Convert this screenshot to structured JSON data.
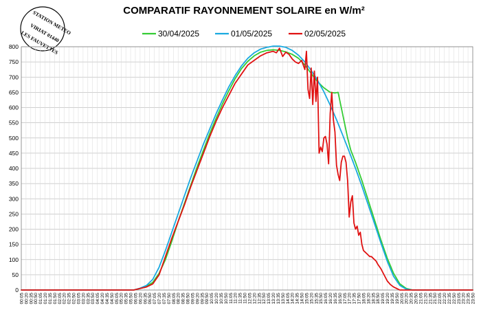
{
  "stamp": {
    "line1": "STATION METEO",
    "line2": "VIRIAT 01440",
    "line3": "LES FAUVETTES"
  },
  "chart_data": {
    "type": "line",
    "title": "COMPARATIF RAYONNEMENT SOLAIRE en W/m²",
    "xlabel": "",
    "ylabel": "",
    "ylim": [
      0,
      800
    ],
    "yticks": [
      0,
      50,
      100,
      150,
      200,
      250,
      300,
      350,
      400,
      450,
      500,
      550,
      600,
      650,
      700,
      750,
      800
    ],
    "grid": true,
    "legend_position": "top-center",
    "x_tick_labels": [
      "00:05",
      "00:20",
      "00:35",
      "00:50",
      "01:05",
      "01:20",
      "01:35",
      "01:50",
      "02:05",
      "02:20",
      "02:35",
      "02:50",
      "03:05",
      "03:20",
      "03:35",
      "03:50",
      "04:05",
      "04:20",
      "04:35",
      "04:50",
      "05:05",
      "05:20",
      "05:35",
      "05:50",
      "06:05",
      "06:20",
      "06:35",
      "06:50",
      "07:05",
      "07:20",
      "07:35",
      "07:50",
      "08:05",
      "08:20",
      "08:35",
      "08:50",
      "09:05",
      "09:20",
      "09:35",
      "09:50",
      "10:05",
      "10:20",
      "10:35",
      "10:50",
      "11:05",
      "11:20",
      "11:35",
      "11:50",
      "12:05",
      "12:20",
      "12:35",
      "12:50",
      "13:05",
      "13:20",
      "13:35",
      "13:50",
      "14:05",
      "14:20",
      "14:35",
      "14:50",
      "15:05",
      "15:20",
      "15:35",
      "15:50",
      "16:05",
      "16:20",
      "16:35",
      "16:50",
      "17:05",
      "17:20",
      "17:35",
      "17:50",
      "18:05",
      "18:20",
      "18:35",
      "18:50",
      "19:05",
      "19:20",
      "19:35",
      "19:50",
      "20:05",
      "20:20",
      "20:35",
      "20:50",
      "21:05",
      "21:20",
      "21:35",
      "21:50",
      "22:05",
      "22:20",
      "22:35",
      "22:50",
      "23:05",
      "23:20",
      "23:35",
      "23:50"
    ],
    "series": [
      {
        "name": "30/04/2025",
        "color": "#33cc33",
        "x": [
          "00:05",
          "06:00",
          "06:20",
          "06:40",
          "07:00",
          "07:20",
          "07:40",
          "08:00",
          "08:20",
          "08:40",
          "09:00",
          "09:20",
          "09:40",
          "10:00",
          "10:20",
          "10:40",
          "11:00",
          "11:20",
          "11:40",
          "12:00",
          "12:20",
          "12:40",
          "13:00",
          "13:20",
          "13:40",
          "14:00",
          "14:20",
          "14:40",
          "15:00",
          "15:20",
          "15:40",
          "16:00",
          "16:20",
          "16:35",
          "16:45",
          "16:55",
          "17:05",
          "17:15",
          "17:25",
          "17:40",
          "18:00",
          "18:20",
          "18:40",
          "19:00",
          "19:20",
          "19:40",
          "20:00",
          "20:20",
          "20:40",
          "21:00",
          "21:20",
          "23:50"
        ],
        "values": [
          0,
          0,
          5,
          12,
          25,
          55,
          100,
          160,
          225,
          285,
          345,
          405,
          460,
          515,
          565,
          612,
          655,
          695,
          728,
          752,
          770,
          782,
          788,
          790,
          788,
          783,
          775,
          762,
          740,
          712,
          685,
          665,
          650,
          648,
          650,
          600,
          550,
          500,
          460,
          420,
          360,
          295,
          230,
          165,
          105,
          55,
          20,
          5,
          0,
          0,
          0,
          0
        ]
      },
      {
        "name": "01/05/2025",
        "color": "#19a9e0",
        "x": [
          "00:05",
          "06:00",
          "06:20",
          "06:40",
          "07:00",
          "07:20",
          "07:40",
          "08:00",
          "08:20",
          "08:40",
          "09:00",
          "09:20",
          "09:40",
          "10:00",
          "10:20",
          "10:40",
          "11:00",
          "11:20",
          "11:40",
          "12:00",
          "12:20",
          "12:40",
          "13:00",
          "13:20",
          "13:40",
          "14:00",
          "14:20",
          "14:40",
          "15:00",
          "15:20",
          "15:40",
          "16:00",
          "16:20",
          "16:40",
          "17:00",
          "17:20",
          "17:40",
          "18:00",
          "18:20",
          "18:40",
          "19:00",
          "19:20",
          "19:40",
          "20:00",
          "20:20",
          "20:40",
          "21:00",
          "21:20",
          "23:50"
        ],
        "values": [
          0,
          0,
          6,
          15,
          35,
          75,
          130,
          190,
          250,
          310,
          370,
          425,
          480,
          530,
          580,
          625,
          668,
          705,
          737,
          762,
          780,
          792,
          798,
          802,
          802,
          798,
          788,
          772,
          750,
          722,
          690,
          652,
          608,
          560,
          508,
          455,
          400,
          342,
          280,
          218,
          155,
          95,
          45,
          15,
          3,
          0,
          0,
          0,
          0
        ]
      },
      {
        "name": "02/05/2025",
        "color": "#e01010",
        "x": [
          "00:05",
          "06:00",
          "06:20",
          "06:40",
          "07:00",
          "07:20",
          "07:40",
          "08:00",
          "08:20",
          "08:40",
          "09:00",
          "09:20",
          "09:40",
          "10:00",
          "10:20",
          "10:40",
          "11:00",
          "11:20",
          "11:40",
          "12:00",
          "12:20",
          "12:40",
          "13:00",
          "13:20",
          "13:30",
          "13:40",
          "13:50",
          "14:00",
          "14:10",
          "14:20",
          "14:30",
          "14:40",
          "14:50",
          "15:00",
          "15:05",
          "15:10",
          "15:15",
          "15:20",
          "15:25",
          "15:30",
          "15:35",
          "15:40",
          "15:45",
          "15:50",
          "15:55",
          "16:00",
          "16:05",
          "16:10",
          "16:15",
          "16:20",
          "16:25",
          "16:30",
          "16:35",
          "16:40",
          "16:45",
          "16:50",
          "16:55",
          "17:00",
          "17:05",
          "17:10",
          "17:15",
          "17:20",
          "17:25",
          "17:30",
          "17:35",
          "17:40",
          "17:45",
          "17:50",
          "17:55",
          "18:00",
          "18:05",
          "18:10",
          "18:15",
          "18:20",
          "18:25",
          "18:30",
          "18:35",
          "18:40",
          "18:45",
          "18:50",
          "19:00",
          "19:10",
          "19:20",
          "19:30",
          "19:40",
          "19:50",
          "20:00",
          "20:10",
          "20:20",
          "20:30",
          "20:40",
          "23:50"
        ],
        "values": [
          0,
          0,
          5,
          10,
          20,
          50,
          110,
          170,
          225,
          280,
          340,
          395,
          450,
          505,
          555,
          600,
          640,
          680,
          710,
          740,
          755,
          770,
          780,
          785,
          780,
          795,
          768,
          782,
          775,
          760,
          750,
          745,
          755,
          725,
          785,
          660,
          630,
          730,
          610,
          720,
          620,
          700,
          450,
          470,
          455,
          500,
          505,
          480,
          415,
          580,
          650,
          560,
          520,
          410,
          380,
          360,
          420,
          440,
          440,
          420,
          360,
          240,
          290,
          310,
          220,
          200,
          210,
          180,
          190,
          150,
          130,
          125,
          120,
          115,
          110,
          110,
          105,
          100,
          95,
          85,
          70,
          50,
          30,
          18,
          10,
          5,
          0,
          0,
          0,
          0,
          0,
          0
        ]
      }
    ]
  }
}
